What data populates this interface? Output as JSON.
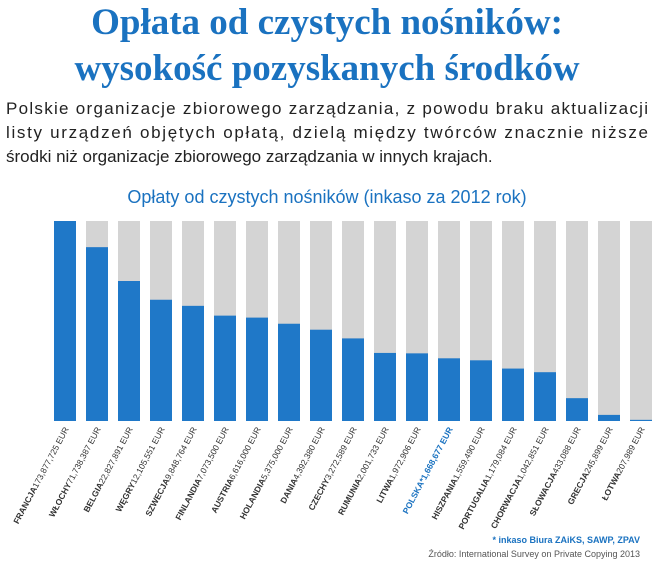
{
  "header": {
    "title_lines": [
      "Opłata od czystych nośników:",
      "wysokość pozyskanych środków"
    ],
    "paragraph_lines": [
      "Polskie organizacje zbiorowego zarządzania, z powodu braku aktualizacji",
      "listy urządzeń objętych opłatą, dzielą między twórców znacznie niższe",
      "środki niż organizacje zbiorowego zarządzania w innych krajach."
    ]
  },
  "chart_data": {
    "type": "bar",
    "title": "Opłaty od czystych nośników (inkaso za 2012 rok)",
    "categories": [
      "FRANCJA",
      "WŁOCHY",
      "BELGIA",
      "WĘGRY",
      "SZWECJA",
      "FINLANDIA",
      "AUSTRIA",
      "HOLANDIA",
      "DANIA",
      "CZECHY",
      "RUMUNIA",
      "LITWA",
      "POLSKA*",
      "HISZPANIA",
      "PORTUGALIA",
      "CHORWACJA",
      "SŁOWACJA",
      "GRECJA",
      "ŁOTWA"
    ],
    "values": [
      173877725,
      71738387,
      22827891,
      12105551,
      9848764,
      7073500,
      6616000,
      5375000,
      4392380,
      3272589,
      2001733,
      1972906,
      1668677,
      1559490,
      1179084,
      1042851,
      433088,
      245899,
      207989
    ],
    "value_labels": [
      "173,877,725 EUR",
      "71,738,387 EUR",
      "22,827,891 EUR",
      "12,105,551 EUR",
      "9,848,764 EUR",
      "7,073,500 EUR",
      "6,616,000 EUR",
      "5,375,000 EUR",
      "4,392,380 EUR",
      "3,272,589 EUR",
      "2,001,733 EUR",
      "1,972,906 EUR",
      "1,668,677 EUR",
      "1,559,490 EUR",
      "1,179,084 EUR",
      "1,042,851 EUR",
      "433,088 EUR",
      "245,899 EUR",
      "207,989 EUR"
    ],
    "color": "#1f78c8",
    "background_color": "#d4d4d4",
    "highlight_index": 12,
    "highlight_label_color": "#1a72c0",
    "log_scale": true,
    "ylim": [
      200000,
      173877725
    ],
    "footnote": "* inkaso Biura ZAiKS, SAWP, ZPAV",
    "source": "Źródło: International Survey on Private Copying 2013"
  }
}
